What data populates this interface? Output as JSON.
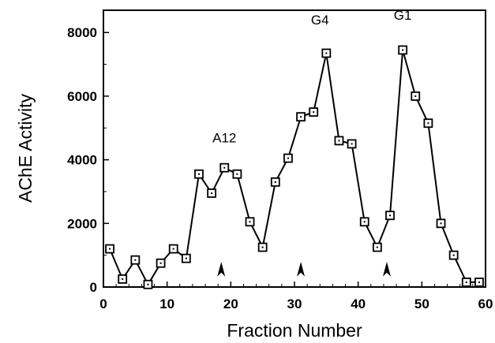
{
  "chart_data": {
    "type": "line",
    "title": "",
    "xlabel": "Fraction Number",
    "ylabel": "AChE  Activity",
    "xlim": [
      0,
      60
    ],
    "ylim": [
      0,
      8700
    ],
    "x_ticks": [
      0,
      10,
      20,
      30,
      40,
      50,
      60
    ],
    "y_ticks": [
      0,
      2000,
      4000,
      6000,
      8000
    ],
    "grid": false,
    "marker": "square-with-dot",
    "series": [
      {
        "x": [
          1,
          3,
          5,
          7,
          9,
          11,
          13,
          15,
          17,
          19,
          21,
          23,
          25,
          27,
          29,
          31,
          33,
          35,
          37,
          39,
          41,
          43,
          45,
          47,
          49,
          51,
          53,
          55,
          57,
          59
        ],
        "values": [
          1200,
          250,
          850,
          80,
          750,
          1200,
          900,
          3550,
          2950,
          3750,
          3550,
          2050,
          1250,
          3300,
          4050,
          5350,
          5500,
          7350,
          4600,
          4500,
          2050,
          1250,
          2250,
          7450,
          6000,
          5150,
          2000,
          1000,
          150,
          150
        ]
      }
    ],
    "peak_labels": [
      {
        "text": "A12",
        "x": 19,
        "y": 4550
      },
      {
        "text": "G4",
        "x": 34,
        "y": 8250
      },
      {
        "text": "G1",
        "x": 47,
        "y": 8400
      }
    ],
    "markers_arrows": [
      18.5,
      31,
      44.5
    ]
  }
}
